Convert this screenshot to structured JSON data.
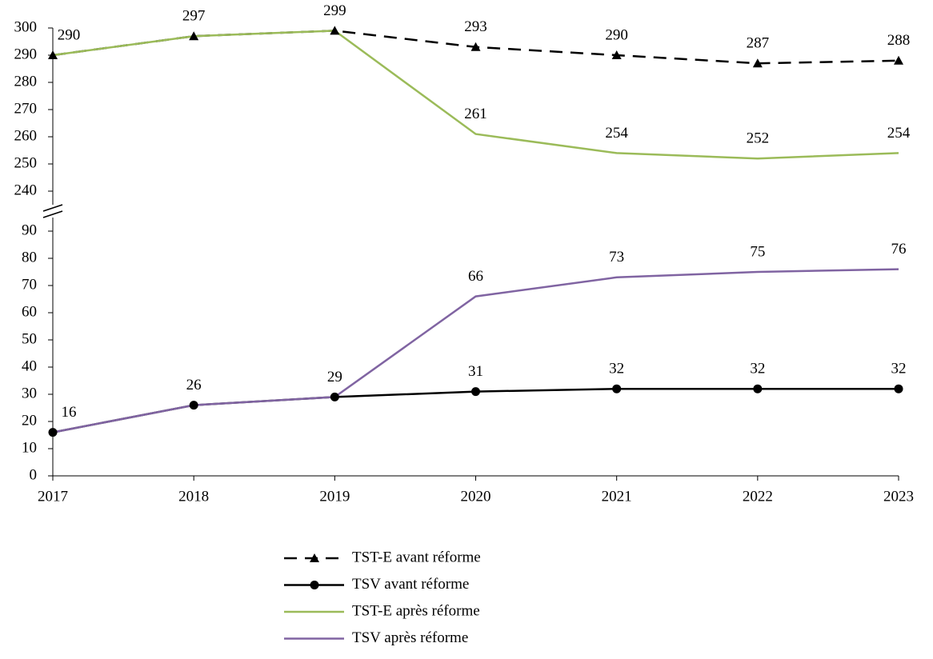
{
  "chart_data": {
    "type": "line",
    "x": [
      "2017",
      "2018",
      "2019",
      "2020",
      "2021",
      "2022",
      "2023"
    ],
    "y_segments": [
      {
        "ylim": [
          0,
          95
        ],
        "yticks": [
          0,
          10,
          20,
          30,
          40,
          50,
          60,
          70,
          80,
          90
        ]
      },
      {
        "ylim": [
          235,
          300
        ],
        "yticks": [
          240,
          250,
          260,
          270,
          280,
          290,
          300
        ]
      }
    ],
    "y_break": true,
    "legend": "bottom",
    "series": [
      {
        "name": "TST-E avant réforme",
        "color": "#000000",
        "dash": true,
        "marker": "triangle",
        "values": [
          290,
          297,
          299,
          293,
          290,
          287,
          288
        ],
        "value_labels": [
          "290",
          "297",
          "299",
          "293",
          "290",
          "287",
          "288"
        ]
      },
      {
        "name": "TSV avant réforme",
        "color": "#000000",
        "dash": false,
        "marker": "circle",
        "values": [
          16,
          26,
          29,
          31,
          32,
          32,
          32
        ],
        "value_labels": [
          "16",
          "26",
          "29",
          "31",
          "32",
          "32",
          "32"
        ]
      },
      {
        "name": "TST-E après réforme",
        "color": "#9bbb59",
        "dash": false,
        "marker": null,
        "values": [
          290,
          297,
          299,
          261,
          254,
          252,
          254
        ],
        "value_labels": [
          null,
          null,
          null,
          "261",
          "254",
          "252",
          "254"
        ]
      },
      {
        "name": "TSV après réforme",
        "color": "#8064a2",
        "dash": false,
        "marker": null,
        "values": [
          16,
          26,
          29,
          66,
          73,
          75,
          76
        ],
        "value_labels": [
          null,
          null,
          null,
          "66",
          "73",
          "75",
          "76"
        ]
      }
    ]
  }
}
